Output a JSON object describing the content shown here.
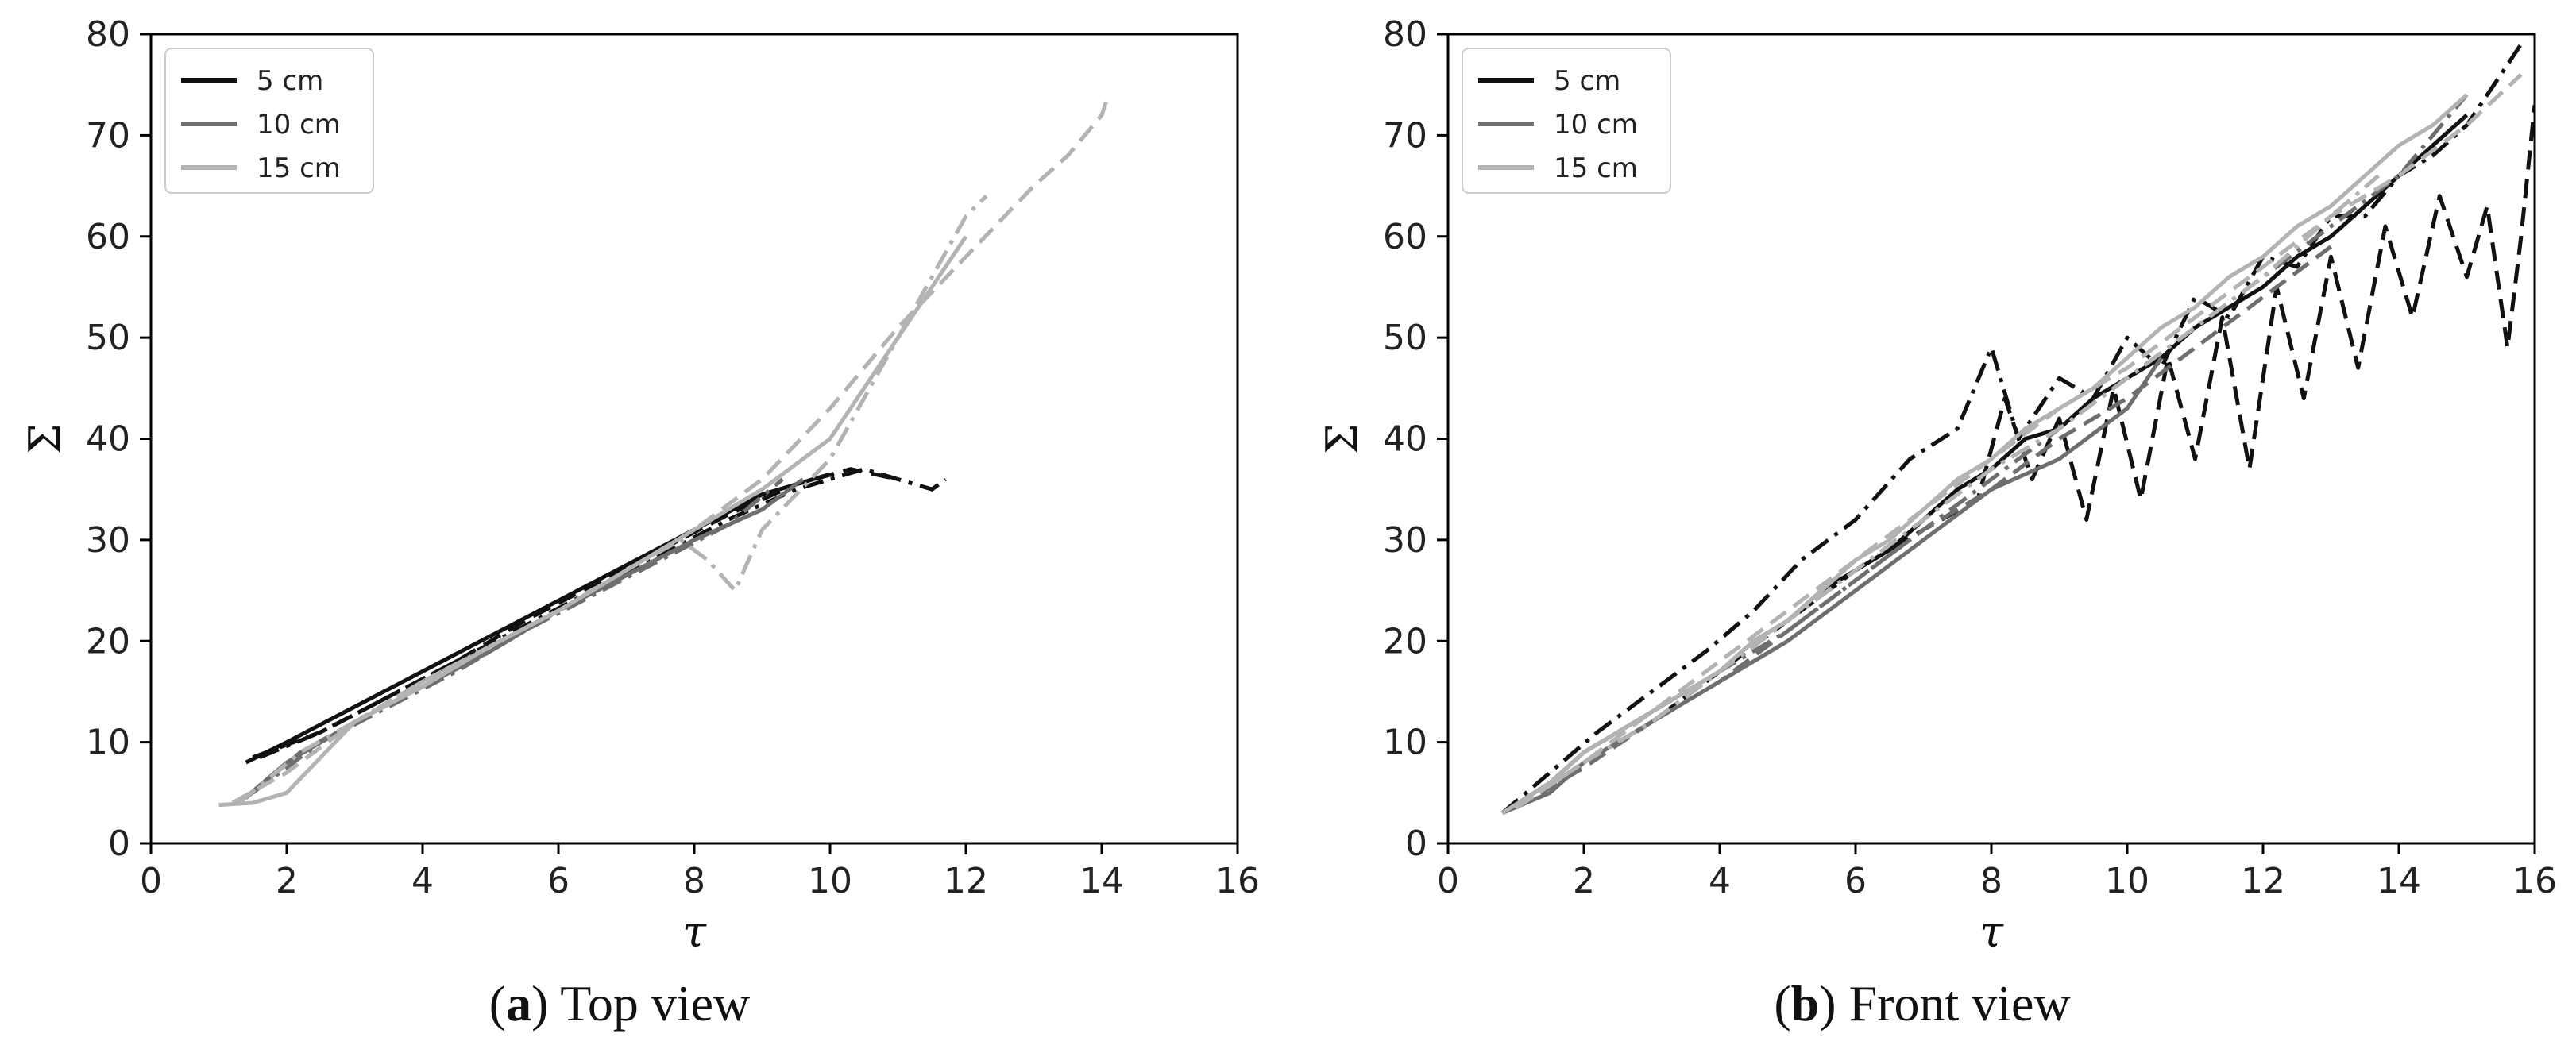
{
  "figure": {
    "panels": [
      {
        "caption_letter": "a",
        "caption_rest": " Top view"
      },
      {
        "caption_letter": "b",
        "caption_rest": " Front view"
      }
    ]
  },
  "colors": {
    "5 cm": "#111111",
    "10 cm": "#6e6e6e",
    "15 cm": "#b3b3b3",
    "axis": "#000000"
  },
  "chart_data": [
    {
      "type": "line",
      "title": "(a) Top view",
      "xlabel": "τ",
      "ylabel": "Σ",
      "xlim": [
        0,
        16
      ],
      "ylim": [
        0,
        80
      ],
      "xticks": [
        0,
        2,
        4,
        6,
        8,
        10,
        12,
        14,
        16
      ],
      "yticks": [
        0,
        10,
        20,
        30,
        40,
        50,
        60,
        70,
        80
      ],
      "grid": false,
      "legend": {
        "position": "top-left",
        "entries": [
          "5 cm",
          "10 cm",
          "15 cm"
        ]
      },
      "series": [
        {
          "name": "5 cm",
          "style": "solid",
          "x": [
            1.4,
            2,
            3,
            4,
            5,
            6,
            7,
            8,
            9,
            10
          ],
          "y": [
            8,
            10,
            13.5,
            17,
            20.5,
            24,
            27.5,
            31,
            34.5,
            36.5
          ]
        },
        {
          "name": "5 cm",
          "style": "dashdot",
          "x": [
            1.6,
            2.5,
            3.5,
            4.5,
            5.5,
            6.5,
            7.5,
            8.5,
            9.5,
            10.5,
            11,
            11.5,
            11.7
          ],
          "y": [
            8.5,
            11,
            14.5,
            18,
            21.5,
            25,
            28.5,
            32,
            35,
            37,
            36,
            35,
            36
          ]
        },
        {
          "name": "5 cm",
          "style": "dashed",
          "x": [
            1.5,
            2.5,
            3.5,
            4.5,
            5.5,
            6.5,
            7.5,
            8.5,
            9.5,
            10.3,
            11
          ],
          "y": [
            8.5,
            11,
            14.5,
            18,
            22,
            25.5,
            29,
            32.5,
            35.5,
            37,
            36
          ]
        },
        {
          "name": "10 cm",
          "style": "solid",
          "x": [
            1.3,
            2,
            3,
            4,
            5,
            6,
            7,
            8,
            9,
            9.6
          ],
          "y": [
            4,
            8,
            12,
            15.5,
            19,
            23,
            26.5,
            30,
            33,
            36
          ]
        },
        {
          "name": "10 cm",
          "style": "dashdot",
          "x": [
            1.5,
            2.5,
            3.5,
            4.5,
            5.5,
            6.5,
            7.5,
            8.5,
            9.3
          ],
          "y": [
            5,
            10,
            13.5,
            17,
            21,
            24.5,
            28,
            31.5,
            36
          ]
        },
        {
          "name": "10 cm",
          "style": "dashed",
          "x": [
            1.4,
            2.2,
            3,
            4,
            5,
            6,
            7,
            8,
            9
          ],
          "y": [
            4.5,
            9,
            12,
            15.5,
            19.5,
            23,
            26.5,
            30,
            33
          ]
        },
        {
          "name": "15 cm",
          "style": "solid",
          "x": [
            1,
            1.5,
            2,
            3,
            4,
            5,
            6,
            7,
            8,
            9,
            10,
            10.5,
            11,
            11.5,
            12
          ],
          "y": [
            3.8,
            4,
            5,
            12,
            15.5,
            19.5,
            23,
            27,
            31,
            35,
            40,
            45,
            50,
            55,
            60
          ]
        },
        {
          "name": "15 cm",
          "style": "dashed",
          "x": [
            1.2,
            2,
            3,
            4,
            5,
            6,
            7,
            8,
            9,
            10,
            11,
            12,
            13,
            13.5,
            14,
            14.1
          ],
          "y": [
            4,
            7,
            12,
            16,
            19.5,
            23,
            27,
            31,
            36,
            43,
            51,
            58,
            65,
            68,
            72,
            74
          ]
        },
        {
          "name": "15 cm",
          "style": "dashdot",
          "x": [
            1.3,
            2.2,
            3,
            4,
            5,
            6,
            7,
            7.8,
            8.2,
            8.6,
            9,
            10,
            10.5,
            11,
            11.5,
            12,
            12.3
          ],
          "y": [
            4,
            9,
            12,
            16,
            19.5,
            23,
            27,
            30,
            28,
            25,
            31,
            38,
            44,
            50,
            56,
            62,
            64
          ]
        }
      ]
    },
    {
      "type": "line",
      "title": "(b) Front view",
      "xlabel": "τ",
      "ylabel": "Σ",
      "xlim": [
        0,
        16
      ],
      "ylim": [
        0,
        80
      ],
      "xticks": [
        0,
        2,
        4,
        6,
        8,
        10,
        12,
        14,
        16
      ],
      "yticks": [
        0,
        10,
        20,
        30,
        40,
        50,
        60,
        70,
        80
      ],
      "grid": false,
      "legend": {
        "position": "top-left",
        "entries": [
          "5 cm",
          "10 cm",
          "15 cm"
        ]
      },
      "series": [
        {
          "name": "5 cm",
          "style": "solid",
          "x": [
            0.8,
            1.5,
            2,
            2.5,
            3,
            3.5,
            4,
            4.5,
            5,
            5.5,
            6,
            6.5,
            7,
            7.5,
            8,
            8.5,
            9,
            9.5,
            10,
            10.5,
            11,
            11.5,
            12,
            12.5,
            13,
            13.5,
            14,
            14.5,
            15
          ],
          "y": [
            3,
            6,
            9,
            11,
            13,
            15,
            17,
            20,
            22,
            25,
            27,
            29,
            32,
            35,
            37,
            40,
            41,
            44,
            46,
            48,
            51,
            53,
            55,
            58,
            60,
            63,
            66,
            69,
            72
          ]
        },
        {
          "name": "5 cm",
          "style": "dashed",
          "x": [
            1,
            2,
            3,
            4,
            5,
            6,
            7,
            7.8,
            8.2,
            8.6,
            9,
            9.4,
            9.8,
            10.2,
            10.6,
            11,
            11.4,
            11.8,
            12.2,
            12.6,
            13,
            13.4,
            13.8,
            14.2,
            14.6,
            15,
            15.3,
            15.6,
            15.8,
            16
          ],
          "y": [
            3.5,
            8,
            12,
            17,
            22,
            27,
            31,
            34,
            44,
            36,
            42,
            32,
            45,
            34,
            48,
            38,
            52,
            37,
            55,
            44,
            58,
            47,
            61,
            52,
            64,
            56,
            63,
            49,
            60,
            73
          ]
        },
        {
          "name": "5 cm",
          "style": "dashdot",
          "x": [
            0.8,
            1.5,
            2.2,
            3,
            3.8,
            4.5,
            5.2,
            6,
            6.8,
            7.5,
            8,
            8.4,
            9,
            9.5,
            10,
            10.5,
            11,
            11.5,
            12,
            12.5,
            13,
            13.5,
            14,
            14.5,
            15,
            15.5,
            15.8
          ],
          "y": [
            3,
            7,
            11,
            15,
            19,
            23,
            28,
            32,
            38,
            41,
            49,
            40,
            46,
            44,
            50,
            47,
            54,
            52,
            58,
            57,
            62,
            62,
            66,
            68,
            71,
            76,
            79
          ]
        },
        {
          "name": "10 cm",
          "style": "solid",
          "x": [
            0.8,
            1.5,
            2,
            3,
            4,
            5,
            6,
            7,
            8,
            9,
            10,
            10.5
          ],
          "y": [
            3,
            5,
            8,
            12,
            16,
            20,
            25,
            30,
            35,
            38,
            43,
            48
          ]
        },
        {
          "name": "10 cm",
          "style": "dashdot",
          "x": [
            1,
            2,
            3,
            4,
            5,
            6,
            7,
            8,
            9,
            10,
            11,
            12,
            13,
            14,
            14.5,
            15
          ],
          "y": [
            3.5,
            8,
            12,
            17,
            21,
            26,
            31,
            36,
            41,
            46,
            51,
            56,
            61,
            66,
            70,
            74
          ]
        },
        {
          "name": "10 cm",
          "style": "dashed",
          "x": [
            1,
            2,
            3,
            4,
            5,
            6,
            7,
            8,
            9,
            10,
            11,
            12,
            13
          ],
          "y": [
            3.5,
            7.5,
            12,
            16,
            21,
            26,
            31,
            35,
            40,
            44,
            49,
            54,
            59
          ]
        },
        {
          "name": "15 cm",
          "style": "solid",
          "x": [
            0.8,
            1.5,
            2,
            2.5,
            3,
            3.5,
            4,
            4.5,
            5,
            5.5,
            6,
            6.5,
            7,
            7.5,
            8,
            8.5,
            9,
            9.5,
            10,
            10.5,
            11,
            11.5,
            12,
            12.5,
            13,
            13.5,
            14,
            14.5,
            15
          ],
          "y": [
            3,
            6,
            9,
            11,
            13,
            15,
            17,
            20,
            22,
            25,
            28,
            30,
            33,
            36,
            38,
            41,
            43,
            45,
            48,
            51,
            53,
            56,
            58,
            61,
            63,
            66,
            69,
            71,
            74
          ]
        },
        {
          "name": "15 cm",
          "style": "dashed",
          "x": [
            1,
            2,
            3,
            4,
            5,
            6,
            7,
            8,
            9,
            10,
            11,
            12,
            13,
            14,
            15,
            15.8
          ],
          "y": [
            3.5,
            8,
            13,
            18,
            23,
            28,
            33,
            38,
            43,
            47,
            52,
            57,
            62,
            66,
            71,
            76
          ]
        },
        {
          "name": "15 cm",
          "style": "dashdot",
          "x": [
            1,
            2,
            3,
            4,
            5,
            6,
            7,
            8,
            9,
            10,
            11,
            12,
            13,
            13.7
          ],
          "y": [
            3.5,
            8,
            12,
            17,
            22,
            27,
            32,
            37,
            41,
            46,
            51,
            56,
            62,
            66
          ]
        }
      ]
    }
  ]
}
